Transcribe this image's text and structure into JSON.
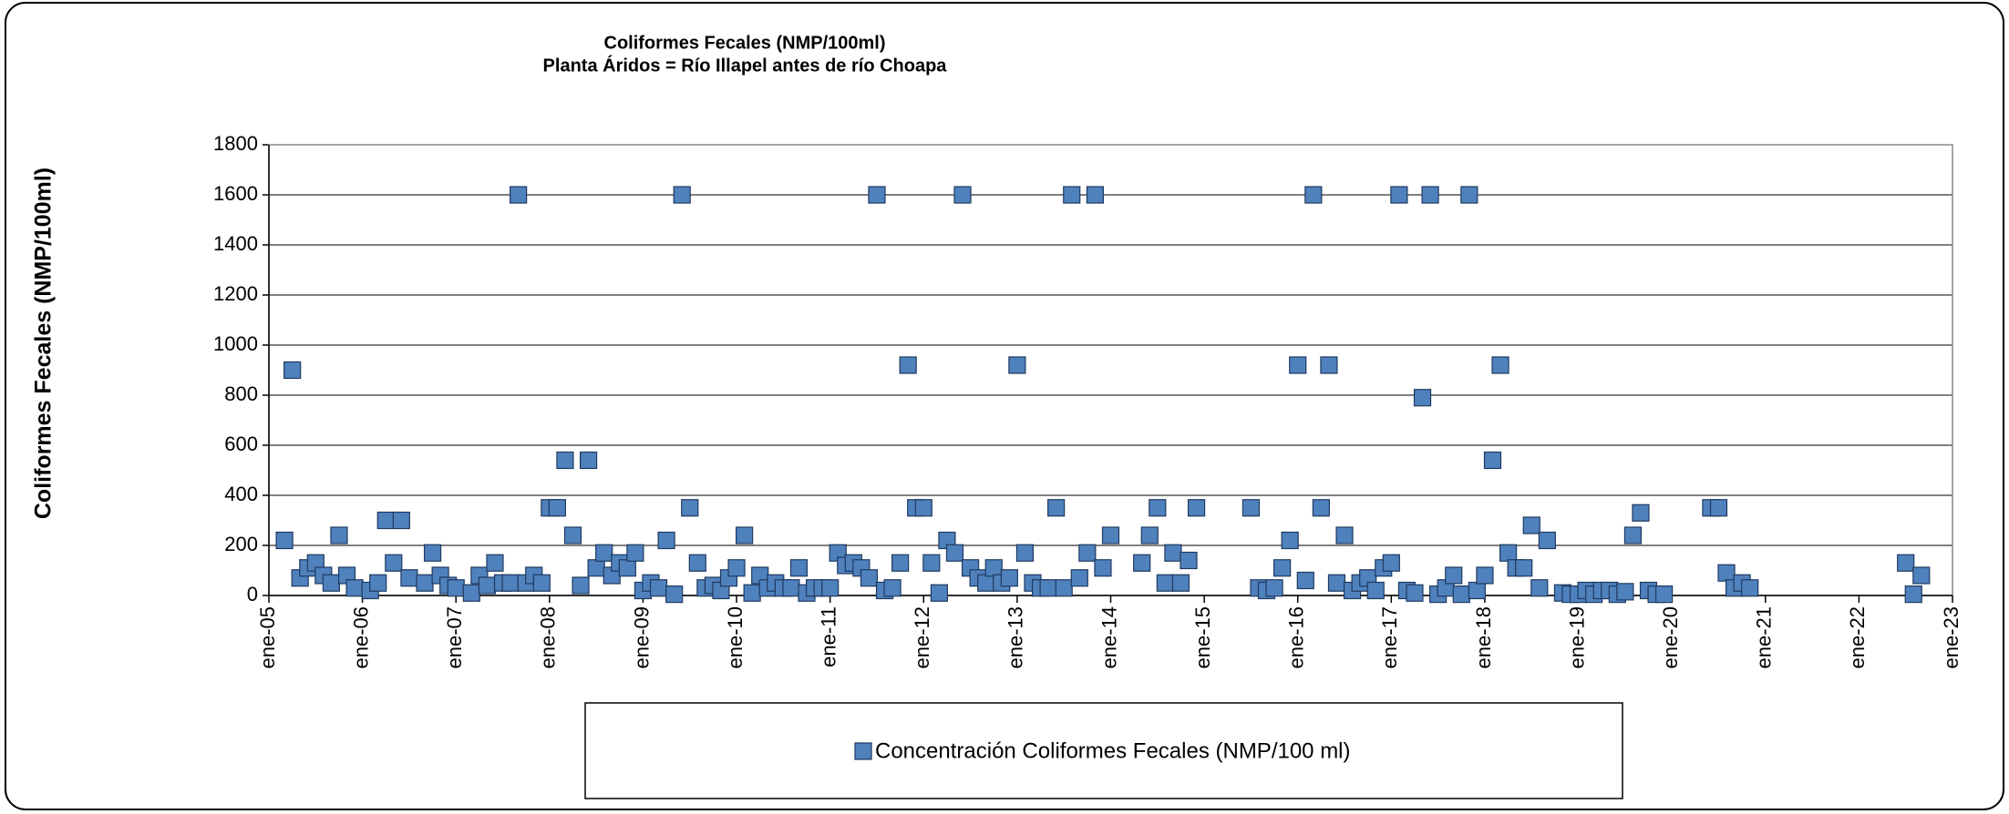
{
  "chart_data": {
    "type": "scatter",
    "title": "Coliformes Fecales (NMP/100ml)",
    "subtitle": "Planta Áridos = Río Illapel antes de río Choapa",
    "y_label": "Coliformes Fecales (NMP/100ml)",
    "grid": true,
    "legend": "bottom",
    "xlim": [
      "2005-01",
      "2023-01"
    ],
    "xticks": [
      {
        "value": "2005-01",
        "label": "ene-05"
      },
      {
        "value": "2006-01",
        "label": "ene-06"
      },
      {
        "value": "2007-01",
        "label": "ene-07"
      },
      {
        "value": "2008-01",
        "label": "ene-08"
      },
      {
        "value": "2009-01",
        "label": "ene-09"
      },
      {
        "value": "2010-01",
        "label": "ene-10"
      },
      {
        "value": "2011-01",
        "label": "ene-11"
      },
      {
        "value": "2012-01",
        "label": "ene-12"
      },
      {
        "value": "2013-01",
        "label": "ene-13"
      },
      {
        "value": "2014-01",
        "label": "ene-14"
      },
      {
        "value": "2015-01",
        "label": "ene-15"
      },
      {
        "value": "2016-01",
        "label": "ene-16"
      },
      {
        "value": "2017-01",
        "label": "ene-17"
      },
      {
        "value": "2018-01",
        "label": "ene-18"
      },
      {
        "value": "2019-01",
        "label": "ene-19"
      },
      {
        "value": "2020-01",
        "label": "ene-20"
      },
      {
        "value": "2021-01",
        "label": "ene-21"
      },
      {
        "value": "2022-01",
        "label": "ene-22"
      },
      {
        "value": "2023-01",
        "label": "ene-23"
      }
    ],
    "ylim": [
      0,
      1800
    ],
    "yticks": [
      0,
      200,
      400,
      600,
      800,
      1000,
      1200,
      1400,
      1600,
      1800
    ],
    "x": [
      "2005-03",
      "2005-04",
      "2005-05",
      "2005-06",
      "2005-07",
      "2005-08",
      "2005-09",
      "2005-10",
      "2005-11",
      "2005-12",
      "2006-02",
      "2006-03",
      "2006-04",
      "2006-05",
      "2006-06",
      "2006-07",
      "2006-09",
      "2006-10",
      "2006-11",
      "2006-12",
      "2007-01",
      "2007-03",
      "2007-04",
      "2007-05",
      "2007-06",
      "2007-07",
      "2007-08",
      "2007-09",
      "2007-10",
      "2007-11",
      "2007-12",
      "2008-01",
      "2008-02",
      "2008-03",
      "2008-04",
      "2008-05",
      "2008-06",
      "2008-07",
      "2008-08",
      "2008-09",
      "2008-10",
      "2008-11",
      "2008-12",
      "2009-01",
      "2009-02",
      "2009-03",
      "2009-04",
      "2009-05",
      "2009-06",
      "2009-07",
      "2009-08",
      "2009-09",
      "2009-10",
      "2009-11",
      "2009-12",
      "2010-01",
      "2010-02",
      "2010-03",
      "2010-04",
      "2010-05",
      "2010-06",
      "2010-07",
      "2010-08",
      "2010-09",
      "2010-10",
      "2010-11",
      "2010-12",
      "2011-01",
      "2011-02",
      "2011-03",
      "2011-04",
      "2011-05",
      "2011-06",
      "2011-07",
      "2011-08",
      "2011-09",
      "2011-10",
      "2011-11",
      "2011-12",
      "2012-01",
      "2012-02",
      "2012-03",
      "2012-04",
      "2012-05",
      "2012-06",
      "2012-07",
      "2012-08",
      "2012-09",
      "2012-10",
      "2012-11",
      "2012-12",
      "2013-01",
      "2013-02",
      "2013-03",
      "2013-04",
      "2013-05",
      "2013-06",
      "2013-07",
      "2013-08",
      "2013-09",
      "2013-10",
      "2013-11",
      "2013-12",
      "2014-01",
      "2014-05",
      "2014-06",
      "2014-07",
      "2014-08",
      "2014-09",
      "2014-10",
      "2014-11",
      "2014-12",
      "2015-07",
      "2015-08",
      "2015-09",
      "2015-10",
      "2015-11",
      "2015-12",
      "2016-01",
      "2016-02",
      "2016-03",
      "2016-04",
      "2016-05",
      "2016-06",
      "2016-07",
      "2016-08",
      "2016-09",
      "2016-10",
      "2016-11",
      "2016-12",
      "2017-01",
      "2017-02",
      "2017-03",
      "2017-04",
      "2017-05",
      "2017-06",
      "2017-07",
      "2017-08",
      "2017-09",
      "2017-10",
      "2017-11",
      "2017-12",
      "2018-01",
      "2018-02",
      "2018-03",
      "2018-04",
      "2018-05",
      "2018-06",
      "2018-07",
      "2018-08",
      "2018-09",
      "2018-11",
      "2018-12",
      "2019-01",
      "2019-02",
      "2019-03",
      "2019-04",
      "2019-05",
      "2019-06",
      "2019-07",
      "2019-08",
      "2019-09",
      "2019-10",
      "2019-11",
      "2019-12",
      "2020-06",
      "2020-07",
      "2020-08",
      "2020-09",
      "2020-10",
      "2020-11",
      "2022-07",
      "2022-08",
      "2022-09"
    ],
    "series": [
      {
        "name": "Concentración Coliformes Fecales (NMP/100 ml)",
        "color": "#4f81bd",
        "values": [
          220,
          900,
          70,
          110,
          130,
          80,
          50,
          240,
          80,
          30,
          20,
          50,
          300,
          130,
          300,
          70,
          50,
          170,
          80,
          40,
          30,
          10,
          80,
          40,
          130,
          50,
          50,
          1600,
          50,
          80,
          50,
          350,
          350,
          540,
          240,
          40,
          540,
          110,
          170,
          80,
          130,
          110,
          170,
          20,
          50,
          30,
          220,
          5,
          1600,
          350,
          130,
          30,
          40,
          20,
          70,
          110,
          240,
          10,
          80,
          30,
          50,
          30,
          30,
          110,
          10,
          30,
          30,
          30,
          170,
          120,
          130,
          110,
          70,
          1600,
          20,
          30,
          130,
          920,
          350,
          350,
          130,
          10,
          220,
          170,
          1600,
          110,
          70,
          50,
          110,
          50,
          70,
          920,
          170,
          50,
          30,
          30,
          350,
          30,
          1600,
          70,
          170,
          1600,
          110,
          240,
          130,
          240,
          350,
          50,
          170,
          50,
          140,
          350,
          350,
          30,
          20,
          30,
          110,
          220,
          920,
          60,
          1600,
          350,
          920,
          50,
          240,
          20,
          50,
          70,
          20,
          110,
          130,
          1600,
          20,
          10,
          790,
          1600,
          5,
          30,
          80,
          5,
          1600,
          20,
          80,
          540,
          920,
          170,
          110,
          110,
          280,
          30,
          220,
          10,
          5,
          5,
          20,
          5,
          20,
          20,
          5,
          15,
          240,
          330,
          20,
          5,
          5,
          350,
          350,
          90,
          30,
          50,
          30,
          130,
          5,
          80
        ]
      }
    ]
  }
}
